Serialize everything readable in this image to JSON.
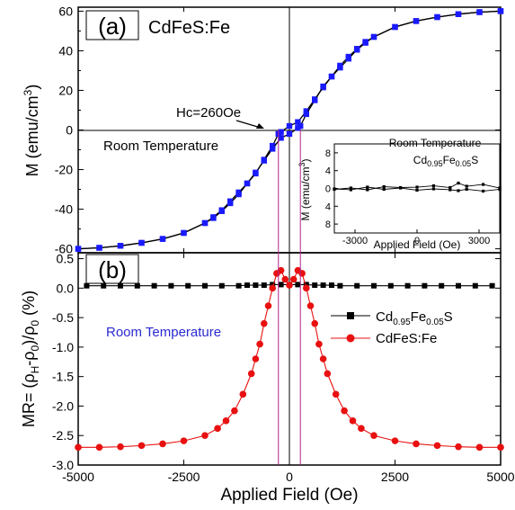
{
  "chart_data": [
    {
      "panel": "(a)",
      "type": "line",
      "title": "CdFeS:Fe",
      "ylabel": "M (emu/cm",
      "ylabel_sup": "3",
      "ylabel_close": ")",
      "xlim": [
        -5000,
        5000
      ],
      "ylim": [
        -62,
        62
      ],
      "yticks": [
        -60,
        -40,
        -20,
        0,
        20,
        40,
        60
      ],
      "annotations": [
        "Hc=260Oe",
        "Room Temperature"
      ],
      "color": "#1a1aff",
      "series": [
        {
          "branch": "descending",
          "x": [
            5000,
            4500,
            4000,
            3500,
            3000,
            2500,
            2000,
            1800,
            1600,
            1400,
            1200,
            1000,
            800,
            600,
            400,
            200,
            0,
            -200,
            -260,
            -400,
            -600,
            -800,
            -1000,
            -1200,
            -1400,
            -1600,
            -1800,
            -2000,
            -2500,
            -3000,
            -3500,
            -4000,
            -4500,
            -5000
          ],
          "y": [
            60,
            59.5,
            58.5,
            57,
            55,
            52,
            47,
            44.5,
            41,
            37,
            32.5,
            27,
            21.5,
            15.5,
            9.5,
            4,
            2,
            -1,
            -2,
            -8,
            -15,
            -22,
            -27,
            -31.5,
            -36,
            -40.5,
            -44,
            -47,
            -52,
            -55,
            -57,
            -58.5,
            -59.5,
            -60
          ]
        },
        {
          "branch": "ascending",
          "x": [
            -5000,
            -4500,
            -4000,
            -3500,
            -3000,
            -2500,
            -2000,
            -1800,
            -1600,
            -1400,
            -1200,
            -1000,
            -800,
            -600,
            -400,
            -200,
            0,
            200,
            260,
            400,
            600,
            800,
            1000,
            1200,
            1400,
            1600,
            1800,
            2000,
            2500,
            3000,
            3500,
            4000,
            4500,
            5000
          ],
          "y": [
            -60,
            -59.5,
            -58.5,
            -57,
            -55,
            -52,
            -47,
            -44.5,
            -41,
            -37,
            -32.5,
            -27,
            -21.5,
            -15.5,
            -9.5,
            -4,
            -2,
            1,
            2,
            8,
            15,
            22,
            27,
            31.5,
            36,
            40.5,
            44,
            47,
            52,
            55,
            57,
            58.5,
            59.5,
            60
          ]
        }
      ],
      "inset": {
        "annotation": "Room Temperature",
        "legend_prefix": "Cd",
        "legend_sub1": "0.95",
        "legend_mid": "Fe",
        "legend_sub2": "0.05",
        "legend_suffix": "S",
        "xlabel": "Applied Field (Oe)",
        "ylabel": "M (emu/cm",
        "ylabel_sup": "3",
        "ylabel_close": ")",
        "xlim": [
          -4000,
          4000
        ],
        "ylim": [
          -10,
          10
        ],
        "xticks": [
          -3000,
          0,
          3000
        ],
        "yticks": [
          -8,
          -4,
          0,
          4,
          8
        ],
        "series": [
          {
            "x": [
              -4000,
              -3200,
              -2400,
              -1600,
              -800,
              0,
              800,
              1600,
              2000,
              2400,
              3200,
              4000
            ],
            "y": [
              -0.2,
              0.1,
              -0.3,
              0.4,
              0.2,
              0.3,
              0.6,
              0.2,
              1.2,
              0.5,
              0.9,
              0.1
            ]
          },
          {
            "x": [
              -4000,
              -3200,
              -2400,
              -1600,
              -800,
              0,
              800,
              1600,
              2000,
              2400,
              3200,
              4000
            ],
            "y": [
              -0.1,
              -0.3,
              0.3,
              -0.2,
              0.1,
              -0.4,
              -0.1,
              -0.3,
              -0.5,
              -0.2,
              -0.6,
              -0.2
            ]
          }
        ]
      }
    },
    {
      "panel": "(b)",
      "type": "line",
      "xlabel": "Applied Field (Oe)",
      "ylabel": "MR= (ρ",
      "ylabel_sub1": "H",
      "ylabel_mid": "-ρ",
      "ylabel_sub2": "0",
      "ylabel_mid2": ")/ρ",
      "ylabel_sub3": "0",
      "ylabel_end": " (%)",
      "xlim": [
        -5000,
        5000
      ],
      "ylim": [
        -3.0,
        0.6
      ],
      "xticks": [
        -5000,
        -2500,
        0,
        2500,
        5000
      ],
      "yticks": [
        0.5,
        0.0,
        -0.5,
        -1.0,
        -1.5,
        -2.0,
        -2.5,
        -3.0
      ],
      "annotation": "Room Temperature",
      "series": [
        {
          "name_prefix": "Cd",
          "name_sub1": "0.95",
          "name_mid": "Fe",
          "name_sub2": "0.05",
          "name_suffix": "S",
          "color": "#000000",
          "marker": "square",
          "x": [
            -4800,
            -4400,
            -4000,
            -3600,
            -3200,
            -2800,
            -2400,
            -2000,
            -1600,
            -1200,
            -1000,
            -800,
            -600,
            -400,
            -200,
            0,
            200,
            400,
            600,
            800,
            1000,
            1200,
            1600,
            2000,
            2400,
            2800,
            3200,
            3600,
            4000,
            4400,
            4800
          ],
          "y": [
            0.04,
            0.04,
            0.04,
            0.04,
            0.04,
            0.04,
            0.04,
            0.04,
            0.04,
            0.04,
            0.05,
            0.05,
            0.05,
            0.06,
            0.06,
            0.06,
            0.06,
            0.06,
            0.05,
            0.05,
            0.05,
            0.04,
            0.04,
            0.04,
            0.04,
            0.04,
            0.04,
            0.04,
            0.04,
            0.04,
            0.04
          ]
        },
        {
          "name": "CdFeS:Fe",
          "color": "#e81010",
          "marker": "circle",
          "x": [
            -5000,
            -4500,
            -4000,
            -3500,
            -3000,
            -2500,
            -2000,
            -1700,
            -1500,
            -1300,
            -1100,
            -900,
            -800,
            -700,
            -600,
            -500,
            -400,
            -300,
            -200,
            -100,
            0,
            100,
            200,
            300,
            400,
            500,
            600,
            700,
            800,
            900,
            1100,
            1300,
            1500,
            1700,
            2000,
            2500,
            3000,
            3500,
            4000,
            4500,
            5000
          ],
          "y": [
            -2.7,
            -2.7,
            -2.69,
            -2.67,
            -2.64,
            -2.59,
            -2.5,
            -2.38,
            -2.25,
            -2.08,
            -1.8,
            -1.45,
            -1.2,
            -0.95,
            -0.6,
            -0.3,
            0.0,
            0.25,
            0.3,
            0.15,
            0.05,
            0.15,
            0.3,
            0.25,
            0.0,
            -0.3,
            -0.6,
            -0.95,
            -1.2,
            -1.45,
            -1.8,
            -2.08,
            -2.25,
            -2.38,
            -2.5,
            -2.59,
            -2.64,
            -2.67,
            -2.69,
            -2.7,
            -2.7
          ]
        }
      ],
      "markers_vertical": [
        -260,
        260
      ]
    }
  ]
}
